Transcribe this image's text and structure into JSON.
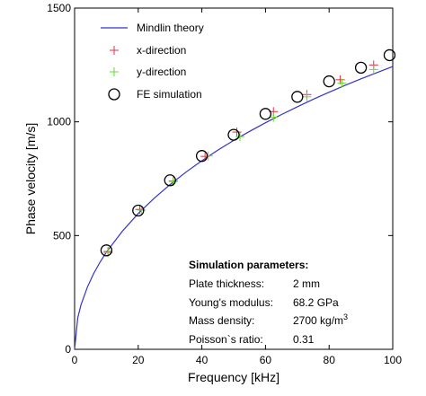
{
  "chart_data": {
    "type": "scatter",
    "xlabel": "Frequency [kHz]",
    "ylabel": "Phase velocity [m/s]",
    "xlim": [
      0,
      100
    ],
    "ylim": [
      0,
      1500
    ],
    "x_ticks": [
      0,
      20,
      40,
      60,
      80,
      100
    ],
    "y_ticks": [
      0,
      500,
      1000,
      1500
    ],
    "grid": false,
    "legend_position": "top-left",
    "colors": {
      "theory": "#3333cc",
      "x_direction": "#e0304a",
      "y_direction": "#66dd33",
      "fe": "#000000"
    },
    "series": [
      {
        "name": "Mindlin theory",
        "kind": "line",
        "x": [
          1,
          2,
          4,
          6,
          8,
          10,
          15,
          20,
          25,
          30,
          35,
          40,
          45,
          50,
          55,
          60,
          65,
          70,
          75,
          80,
          85,
          90,
          95,
          100
        ],
        "y": [
          138,
          195,
          273,
          333,
          383,
          427,
          519,
          597,
          664,
          724,
          779,
          829,
          875,
          918,
          958,
          996,
          1032,
          1066,
          1099,
          1130,
          1160,
          1189,
          1216,
          1243
        ]
      },
      {
        "name": "x-direction",
        "kind": "plus",
        "x": [
          10.5,
          20.5,
          31,
          41,
          51,
          62.5,
          73,
          83.5,
          94
        ],
        "y": [
          430,
          615,
          740,
          848,
          955,
          1045,
          1120,
          1185,
          1250
        ]
      },
      {
        "name": "y-direction",
        "kind": "plus",
        "x": [
          10.5,
          21,
          31,
          42,
          52,
          62.5,
          73,
          84,
          94
        ],
        "y": [
          425,
          612,
          738,
          850,
          935,
          1020,
          1110,
          1170,
          1230
        ]
      },
      {
        "name": "FE simulation",
        "kind": "circle",
        "x": [
          10,
          20,
          30,
          40,
          50,
          60,
          70,
          80,
          90,
          99
        ],
        "y": [
          435,
          610,
          743,
          850,
          943,
          1035,
          1110,
          1178,
          1238,
          1293
        ]
      }
    ],
    "annotation": {
      "title": "Simulation parameters:",
      "rows": [
        {
          "label": "Plate thickness:",
          "value": "2 mm"
        },
        {
          "label": "Young's modulus:",
          "value": "68.2 GPa"
        },
        {
          "label": "Mass density:",
          "value": "2700 kg/m",
          "superscript": "3"
        },
        {
          "label": "Poisson`s ratio:",
          "value": "0.31"
        }
      ]
    }
  }
}
